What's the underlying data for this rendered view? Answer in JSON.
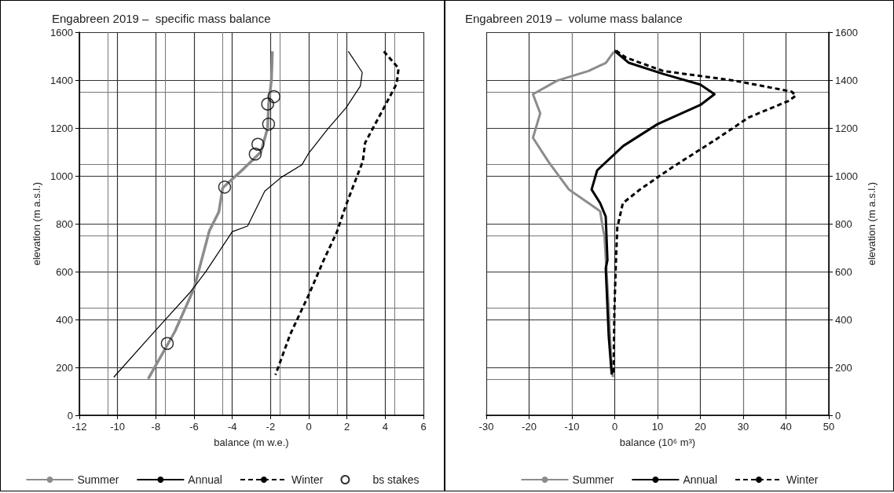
{
  "chart_data": [
    {
      "type": "line",
      "title": "Engabreen 2019 –  specific mass balance",
      "xlabel": "balance (m w.e.)",
      "ylabel": "elevation (m a.s.l.)",
      "xlim": [
        -12,
        6
      ],
      "xticks": [
        -12,
        -10,
        -8,
        -6,
        -4,
        -2,
        0,
        2,
        4,
        6
      ],
      "ylim": [
        0,
        1600
      ],
      "yticks": [
        0,
        200,
        400,
        600,
        800,
        1000,
        1200,
        1400,
        1600
      ],
      "grid": true,
      "legend": "bottom",
      "series": [
        {
          "name": "Summer",
          "color": "#8c8c8c",
          "line_style": "solid",
          "marker": "none",
          "x": [
            -1.9,
            -1.95,
            -2.1,
            -2.15,
            -2.5,
            -3.4,
            -4.5,
            -4.7,
            -5.2,
            -6.0,
            -7.0,
            -8.4
          ],
          "values": [
            1520,
            1400,
            1300,
            1200,
            1100,
            1030,
            950,
            850,
            770,
            530,
            350,
            152
          ]
        },
        {
          "name": "Annual",
          "color": "#000000",
          "line_style": "solid",
          "marker": "none",
          "x": [
            2.07,
            2.8,
            2.7,
            1.95,
            1.0,
            0.0,
            -0.35,
            -1.45,
            -2.3,
            -3.2,
            -4.0,
            -5.4,
            -6.2,
            -8.05,
            -10.2
          ],
          "values": [
            1520,
            1432,
            1375,
            1284,
            1196,
            1095,
            1047,
            993,
            936,
            790,
            767,
            598,
            514,
            351,
            159
          ]
        },
        {
          "name": "Winter",
          "color": "#000000",
          "line_style": "dashed",
          "marker": "none",
          "x": [
            3.93,
            4.7,
            4.6,
            3.93,
            2.95,
            2.83,
            1.95,
            1.48,
            0.75,
            0.0,
            -0.97,
            -1.74
          ],
          "values": [
            1520,
            1449,
            1385,
            1284,
            1138,
            1061,
            878,
            767,
            642,
            503,
            338,
            169
          ]
        },
        {
          "name": "bs stakes",
          "type": "scatter",
          "color": "#000000",
          "marker": "circle",
          "x": [
            -1.82,
            -2.15,
            -2.1,
            -2.66,
            -2.8,
            -4.4,
            -7.4
          ],
          "values": [
            1331,
            1300,
            1216,
            1132,
            1091,
            953,
            300
          ]
        }
      ]
    },
    {
      "type": "line",
      "title": "Engabreen 2019 –  volume mass balance",
      "xlabel": "balance (10⁶ m³)",
      "ylabel": "elevation (m a.s.l.)",
      "xlim": [
        -30,
        50
      ],
      "xticks": [
        -30,
        -20,
        -10,
        0,
        10,
        20,
        30,
        40,
        50
      ],
      "ylim": [
        0,
        1600
      ],
      "yticks": [
        0,
        200,
        400,
        600,
        800,
        1000,
        1200,
        1400,
        1600
      ],
      "grid": true,
      "legend": "bottom",
      "series": [
        {
          "name": "Summer",
          "color": "#8c8c8c",
          "line_style": "solid",
          "marker": "none",
          "x": [
            -0.27,
            -2.06,
            -6.1,
            -13.4,
            -19.1,
            -17.4,
            -19.1,
            -15.4,
            -10.7,
            -6.1,
            -3.4,
            -2.7,
            -2.4,
            -1.4,
            -0.74,
            -0.4
          ],
          "values": [
            1517,
            1472,
            1438,
            1398,
            1341,
            1261,
            1159,
            1057,
            943,
            886,
            852,
            773,
            750,
            443,
            193,
            160
          ]
        },
        {
          "name": "Annual",
          "color": "#000000",
          "line_style": "solid",
          "marker": "none",
          "x": [
            -0.07,
            3.3,
            11.3,
            20,
            23.3,
            20,
            10,
            2,
            -4.1,
            -5.4,
            -3.4,
            -2.1,
            -1.7,
            -2.1,
            -1.4,
            -0.7
          ],
          "values": [
            1523,
            1472,
            1426,
            1381,
            1341,
            1296,
            1216,
            1125,
            1023,
            943,
            886,
            830,
            648,
            614,
            330,
            170
          ]
        },
        {
          "name": "Winter",
          "color": "#000000",
          "line_style": "dashed",
          "marker": "none",
          "x": [
            0.3,
            2.6,
            11.3,
            27.9,
            41.3,
            42.3,
            40.6,
            31.3,
            23.3,
            13.3,
            5.9,
            1.9,
            0.6,
            0.3,
            -0.07,
            -0.3
          ],
          "values": [
            1523,
            1494,
            1438,
            1398,
            1352,
            1335,
            1313,
            1244,
            1148,
            1034,
            943,
            886,
            784,
            648,
            443,
            165
          ]
        }
      ]
    }
  ]
}
